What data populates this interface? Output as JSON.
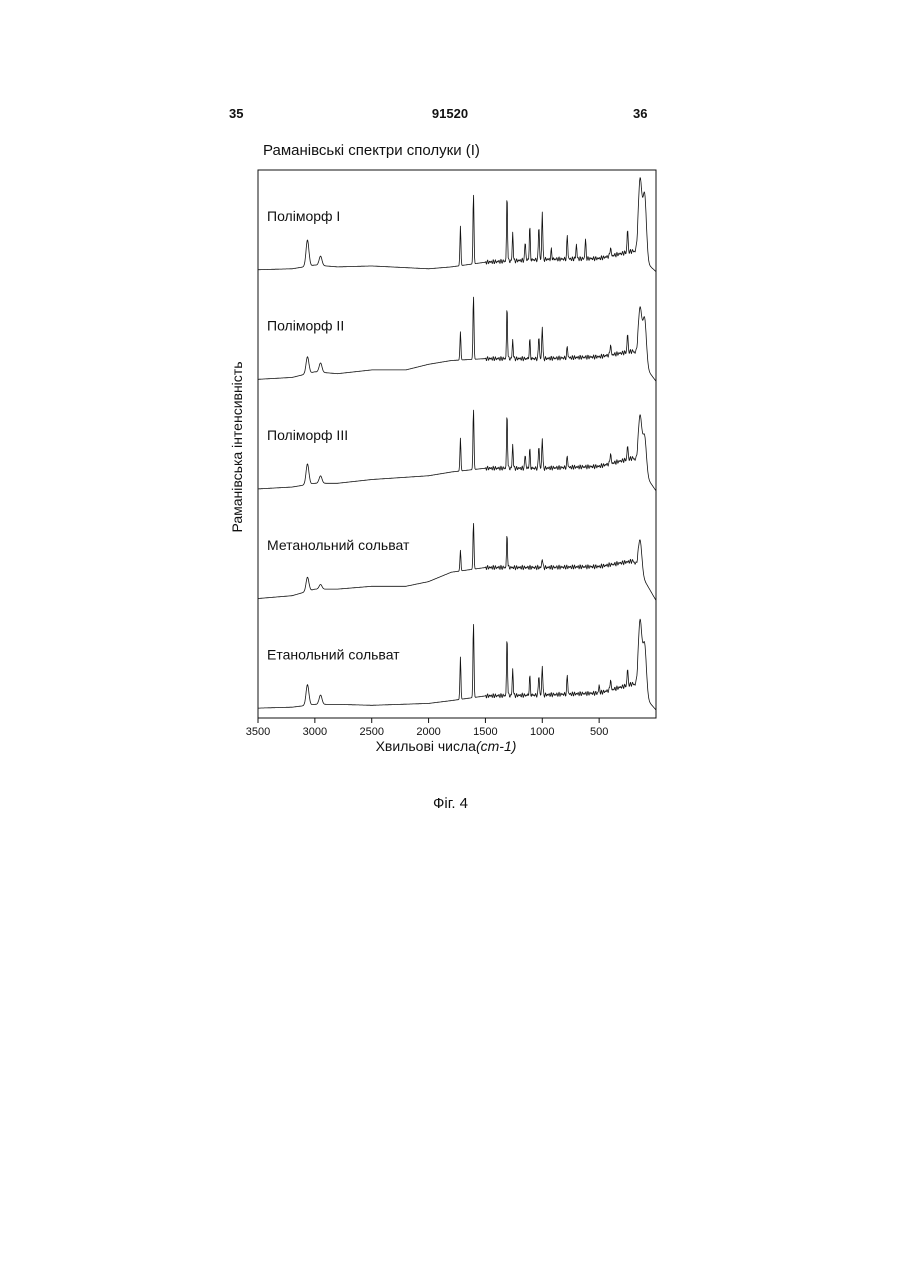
{
  "page_header": {
    "left": "35",
    "center": "91520",
    "right": "36"
  },
  "figure_caption": "Фіг. 4",
  "chart_data": {
    "type": "line",
    "title": "Раманівські спектри сполуки (І)",
    "xlabel_main": "Хвильові числа",
    "xlabel_unit": "(cm-1)",
    "ylabel": "Раманівська інтенсивність",
    "xlim": [
      3500,
      0
    ],
    "x_inverted": true,
    "x_ticks": [
      3500,
      3000,
      2500,
      2000,
      1500,
      1000,
      500
    ],
    "grid": false,
    "legend": "none",
    "series": [
      {
        "name": "Поліморф I",
        "baseline": [
          [
            3500,
            0.02
          ],
          [
            3200,
            0.03
          ],
          [
            3000,
            0.07
          ],
          [
            2800,
            0.05
          ],
          [
            2500,
            0.06
          ],
          [
            2000,
            0.03
          ],
          [
            1800,
            0.05
          ],
          [
            1500,
            0.1
          ],
          [
            1000,
            0.13
          ],
          [
            500,
            0.14
          ],
          [
            200,
            0.22
          ],
          [
            0,
            0.0
          ]
        ],
        "peaks": [
          [
            3065,
            0.28
          ],
          [
            2950,
            0.1
          ],
          [
            1720,
            0.42
          ],
          [
            1605,
            0.75
          ],
          [
            1310,
            0.7
          ],
          [
            1260,
            0.3
          ],
          [
            1150,
            0.2
          ],
          [
            1110,
            0.35
          ],
          [
            1030,
            0.37
          ],
          [
            1000,
            0.52
          ],
          [
            920,
            0.1
          ],
          [
            780,
            0.25
          ],
          [
            700,
            0.15
          ],
          [
            620,
            0.2
          ],
          [
            400,
            0.1
          ],
          [
            250,
            0.25
          ],
          [
            140,
            0.82
          ],
          [
            100,
            0.7
          ]
        ]
      },
      {
        "name": "Поліморф II",
        "baseline": [
          [
            3500,
            0.02
          ],
          [
            3200,
            0.04
          ],
          [
            3000,
            0.1
          ],
          [
            2800,
            0.08
          ],
          [
            2500,
            0.12
          ],
          [
            2200,
            0.12
          ],
          [
            2000,
            0.18
          ],
          [
            1800,
            0.22
          ],
          [
            1500,
            0.24
          ],
          [
            1000,
            0.24
          ],
          [
            500,
            0.26
          ],
          [
            200,
            0.32
          ],
          [
            0,
            0.0
          ]
        ],
        "peaks": [
          [
            3065,
            0.18
          ],
          [
            2950,
            0.1
          ],
          [
            1720,
            0.3
          ],
          [
            1605,
            0.68
          ],
          [
            1310,
            0.55
          ],
          [
            1260,
            0.2
          ],
          [
            1110,
            0.2
          ],
          [
            1030,
            0.25
          ],
          [
            1000,
            0.35
          ],
          [
            780,
            0.12
          ],
          [
            400,
            0.12
          ],
          [
            250,
            0.2
          ],
          [
            140,
            0.55
          ],
          [
            100,
            0.5
          ]
        ]
      },
      {
        "name": "Поліморф III",
        "baseline": [
          [
            3500,
            0.02
          ],
          [
            3200,
            0.04
          ],
          [
            3000,
            0.08
          ],
          [
            2800,
            0.08
          ],
          [
            2500,
            0.12
          ],
          [
            2000,
            0.16
          ],
          [
            1800,
            0.2
          ],
          [
            1500,
            0.24
          ],
          [
            1000,
            0.24
          ],
          [
            500,
            0.26
          ],
          [
            200,
            0.35
          ],
          [
            0,
            0.0
          ]
        ],
        "peaks": [
          [
            3065,
            0.22
          ],
          [
            2950,
            0.08
          ],
          [
            1720,
            0.35
          ],
          [
            1605,
            0.65
          ],
          [
            1310,
            0.58
          ],
          [
            1260,
            0.25
          ],
          [
            1150,
            0.15
          ],
          [
            1110,
            0.2
          ],
          [
            1030,
            0.25
          ],
          [
            1000,
            0.33
          ],
          [
            780,
            0.12
          ],
          [
            400,
            0.12
          ],
          [
            250,
            0.15
          ],
          [
            140,
            0.55
          ],
          [
            100,
            0.4
          ]
        ]
      },
      {
        "name": "Метанольний сольват",
        "baseline": [
          [
            3500,
            0.02
          ],
          [
            3200,
            0.05
          ],
          [
            3000,
            0.12
          ],
          [
            2800,
            0.12
          ],
          [
            2500,
            0.15
          ],
          [
            2200,
            0.15
          ],
          [
            2000,
            0.2
          ],
          [
            1800,
            0.3
          ],
          [
            1500,
            0.35
          ],
          [
            1000,
            0.35
          ],
          [
            500,
            0.36
          ],
          [
            200,
            0.42
          ],
          [
            0,
            0.0
          ]
        ],
        "peaks": [
          [
            3065,
            0.15
          ],
          [
            2950,
            0.05
          ],
          [
            1720,
            0.22
          ],
          [
            1605,
            0.5
          ],
          [
            1310,
            0.35
          ],
          [
            1000,
            0.1
          ],
          [
            140,
            0.35
          ]
        ]
      },
      {
        "name": "Етанольний сольват",
        "baseline": [
          [
            3500,
            0.02
          ],
          [
            3200,
            0.03
          ],
          [
            3000,
            0.06
          ],
          [
            2800,
            0.06
          ],
          [
            2500,
            0.05
          ],
          [
            2000,
            0.07
          ],
          [
            1800,
            0.1
          ],
          [
            1500,
            0.15
          ],
          [
            1000,
            0.16
          ],
          [
            500,
            0.18
          ],
          [
            200,
            0.28
          ],
          [
            0,
            0.0
          ]
        ],
        "peaks": [
          [
            3065,
            0.22
          ],
          [
            2950,
            0.1
          ],
          [
            1720,
            0.45
          ],
          [
            1605,
            0.8
          ],
          [
            1310,
            0.62
          ],
          [
            1260,
            0.28
          ],
          [
            1110,
            0.2
          ],
          [
            1030,
            0.22
          ],
          [
            1000,
            0.32
          ],
          [
            780,
            0.2
          ],
          [
            500,
            0.08
          ],
          [
            400,
            0.12
          ],
          [
            250,
            0.18
          ],
          [
            140,
            0.75
          ],
          [
            100,
            0.55
          ]
        ]
      }
    ]
  }
}
